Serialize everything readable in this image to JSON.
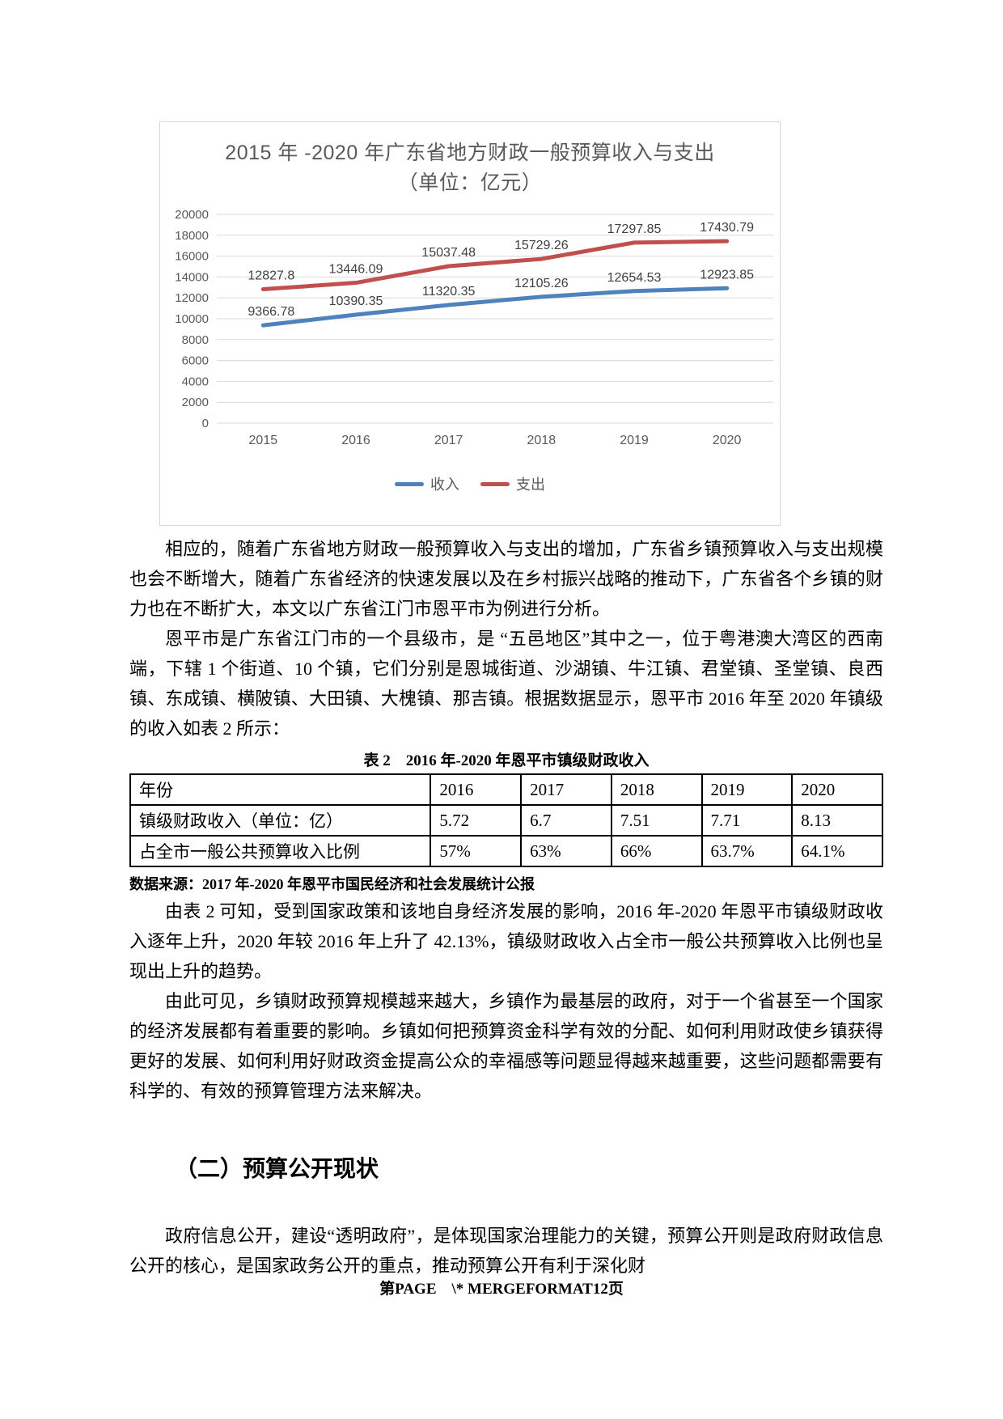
{
  "chart_data": {
    "type": "line",
    "title": "2015 年 -2020 年广东省地方财政一般预算收入与支出（单位：亿元）",
    "categories": [
      "2015",
      "2016",
      "2017",
      "2018",
      "2019",
      "2020"
    ],
    "series": [
      {
        "name": "收入",
        "color": "#4F81BD",
        "values": [
          9366.78,
          10390.35,
          11320.35,
          12105.26,
          12654.53,
          12923.85
        ]
      },
      {
        "name": "支出",
        "color": "#C0504D",
        "values": [
          12827.8,
          13446.09,
          15037.48,
          15729.26,
          17297.85,
          17430.79
        ]
      }
    ],
    "ylim": [
      0,
      20000
    ],
    "ytick_step": 2000,
    "grid": true,
    "legend_position": "bottom",
    "data_labels": true,
    "axis_color": "#595959",
    "grid_color": "#d9d9d9",
    "label_color": "#404040"
  },
  "paragraphs": {
    "p1": "相应的，随着广东省地方财政一般预算收入与支出的增加，广东省乡镇预算收入与支出规模也会不断增大，随着广东省经济的快速发展以及在乡村振兴战略的推动下，广东省各个乡镇的财力也在不断扩大，本文以广东省江门市恩平市为例进行分析。",
    "p2": "恩平市是广东省江门市的一个县级市，是 “五邑地区”其中之一，位于粤港澳大湾区的西南端，下辖 1 个街道、10 个镇，它们分别是恩城街道、沙湖镇、牛江镇、君堂镇、圣堂镇、良西镇、东成镇、横陂镇、大田镇、大槐镇、那吉镇。根据数据显示，恩平市 2016 年至 2020 年镇级的收入如表 2 所示：",
    "p3": "由表 2 可知，受到国家政策和该地自身经济发展的影响，2016 年-2020 年恩平市镇级财政收入逐年上升，2020 年较 2016 年上升了 42.13%，镇级财政收入占全市一般公共预算收入比例也呈现出上升的趋势。",
    "p4": "由此可见，乡镇财政预算规模越来越大，乡镇作为最基层的政府，对于一个省甚至一个国家的经济发展都有着重要的影响。乡镇如何把预算资金科学有效的分配、如何利用财政使乡镇获得更好的发展、如何利用好财政资金提高公众的幸福感等问题显得越来越重要，这些问题都需要有科学的、有效的预算管理方法来解决。",
    "p5": "政府信息公开，建设“透明政府”，是体现国家治理能力的关键，预算公开则是政府财政信息公开的核心，是国家政务公开的重点，推动预算公开有利于深化财"
  },
  "table": {
    "caption": "表 2　2016 年-2020 年恩平市镇级财政收入",
    "rows": [
      [
        "年份",
        "2016",
        "2017",
        "2018",
        "2019",
        "2020"
      ],
      [
        "镇级财政收入（单位：亿）",
        "5.72",
        "6.7",
        "7.51",
        "7.71",
        "8.13"
      ],
      [
        "占全市一般公共预算收入比例",
        "57%",
        "63%",
        "66%",
        "63.7%",
        "64.1%"
      ]
    ],
    "source_note": "数据来源：2017 年-2020 年恩平市国民经济和社会发展统计公报"
  },
  "heading": {
    "text": "（二）预算公开现状"
  },
  "footer": {
    "text": "第PAGE　\\* MERGEFORMAT12页"
  }
}
